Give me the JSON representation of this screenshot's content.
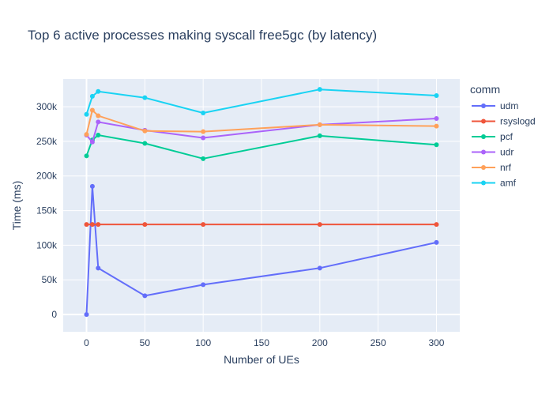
{
  "chart_data": {
    "type": "line",
    "title": "Top 6 active processes making syscall free5gc (by latency)",
    "xlabel": "Number of UEs",
    "ylabel": "Time (ms)",
    "xlim": [
      -20,
      320
    ],
    "ylim": [
      -25000,
      340000
    ],
    "xticks": [
      0,
      50,
      100,
      150,
      200,
      250,
      300
    ],
    "yticks": [
      0,
      50000,
      100000,
      150000,
      200000,
      250000,
      300000
    ],
    "ytick_labels": [
      "0",
      "50k",
      "100k",
      "150k",
      "200k",
      "250k",
      "300k"
    ],
    "legend_title": "comm",
    "legend_position": "right",
    "grid": true,
    "x": [
      0,
      5,
      10,
      50,
      100,
      200,
      300
    ],
    "series": [
      {
        "name": "udm",
        "color": "#636efa",
        "values": [
          0,
          185000,
          67000,
          27000,
          43000,
          67000,
          104000
        ]
      },
      {
        "name": "rsyslogd",
        "color": "#ef553b",
        "values": [
          130000,
          130000,
          130000,
          130000,
          130000,
          130000,
          130000
        ]
      },
      {
        "name": "pcf",
        "color": "#00cc96",
        "values": [
          229000,
          252000,
          259000,
          247000,
          225000,
          258000,
          245000
        ]
      },
      {
        "name": "udr",
        "color": "#ab63fa",
        "values": [
          259000,
          249000,
          278000,
          266000,
          255000,
          274000,
          283000
        ]
      },
      {
        "name": "nrf",
        "color": "#ffa15a",
        "values": [
          260000,
          295000,
          287000,
          265000,
          264000,
          274000,
          272000
        ]
      },
      {
        "name": "amf",
        "color": "#19d3f3",
        "values": [
          289000,
          315000,
          322000,
          313000,
          291000,
          325000,
          316000
        ]
      }
    ]
  }
}
